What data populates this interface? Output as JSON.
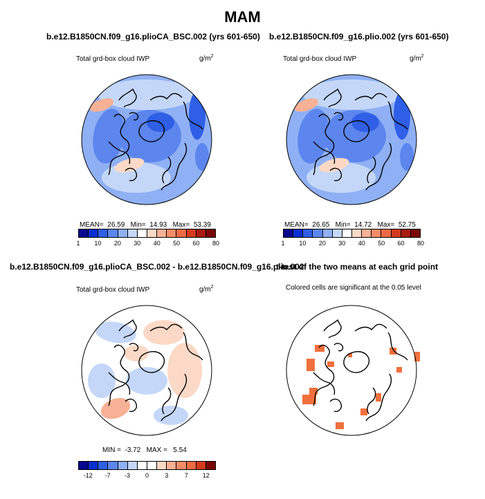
{
  "figure": {
    "title": "MAM"
  },
  "panels": [
    {
      "title": "b.e12.B1850CN.f09_g16.plioCA_BSC.002 (yrs 601-650)",
      "variable": "Total grd-box cloud IWP",
      "units_base": "g/m",
      "units_exp": "2",
      "stats": {
        "mean_label": "MEAN=",
        "mean": "26.59",
        "min_label": "Min=",
        "min": "14.93",
        "max_label": "Max=",
        "max": "53.39"
      }
    },
    {
      "title": "b.e12.B1850CN.f09_g16.plio.002 (yrs 601-650)",
      "variable": "Total grd-box cloud IWP",
      "units_base": "g/m",
      "units_exp": "2",
      "stats": {
        "mean_label": "MEAN=",
        "mean": "26.65",
        "min_label": "Min=",
        "min": "14.72",
        "max_label": "Max=",
        "max": "52.75"
      }
    },
    {
      "title": "b.e12.B1850CN.f09_g16.plioCA_BSC.002 - b.e12.B1850CN.f09_g16.plio.002",
      "variable": "Total grd-box cloud IWP",
      "units_base": "g/m",
      "units_exp": "2",
      "stats": {
        "min_label": "MIN =",
        "min": "-3.72",
        "max_label": "MAX =",
        "max": "5.54"
      }
    },
    {
      "title": "t-test of the two means at each grid point",
      "subtitle": "Colored cells are significant at the 0.05 level"
    }
  ],
  "colorbar_abs": {
    "colors": [
      "#08088f",
      "#0a2fd0",
      "#2f5fe6",
      "#5c86ee",
      "#8fb0f4",
      "#c4d7f8",
      "#ffffff",
      "#fbd9c6",
      "#f7b194",
      "#f38b68",
      "#ec6a45",
      "#d43a1f",
      "#a81b10",
      "#7a0808"
    ],
    "tick_labels": [
      "1",
      "10",
      "20",
      "30",
      "40",
      "50",
      "60",
      "80"
    ]
  },
  "colorbar_diff": {
    "colors": [
      "#08088f",
      "#0a2fd0",
      "#2f5fe6",
      "#5c86ee",
      "#8fb0f4",
      "#c4d7f8",
      "#ffffff",
      "#ffffff",
      "#fbd9c6",
      "#f7b194",
      "#f38b68",
      "#ec6a45",
      "#d43a1f",
      "#7a0808"
    ],
    "tick_labels": [
      "-12",
      "-7",
      "-3",
      "0",
      "3",
      "7",
      "12"
    ]
  },
  "significance_color": "#f0703d"
}
